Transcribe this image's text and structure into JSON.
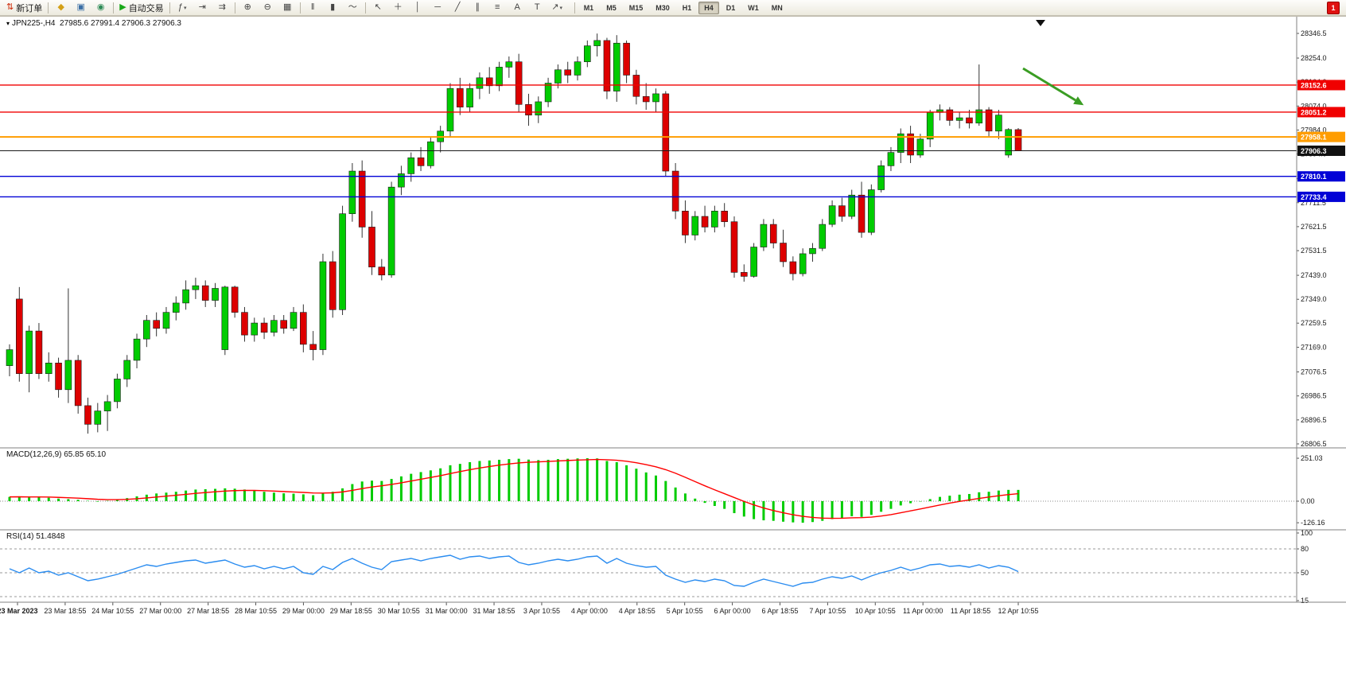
{
  "toolbar": {
    "groups": [
      {
        "items": [
          {
            "name": "new-order-button",
            "glyph": "⇅",
            "color": "#cc2200",
            "label": "新订单"
          }
        ]
      },
      {
        "items": [
          {
            "name": "market-watch-button",
            "glyph": "◆",
            "color": "#d4a017"
          },
          {
            "name": "chart-window-button",
            "glyph": "▣",
            "color": "#3a6ea5"
          },
          {
            "name": "navigator-button",
            "glyph": "◉",
            "color": "#2e8b57"
          }
        ]
      },
      {
        "items": [
          {
            "name": "autotrade-button",
            "glyph": "▶",
            "color": "#18a818",
            "label": "自动交易"
          }
        ]
      },
      {
        "items": [
          {
            "name": "indicators-list-button",
            "glyph": "ƒ",
            "color": "#444444",
            "caret": true
          },
          {
            "name": "shift-chart-button",
            "glyph": "⇥",
            "color": "#444444"
          },
          {
            "name": "auto-scroll-button",
            "glyph": "⇉",
            "color": "#444444"
          }
        ]
      },
      {
        "items": [
          {
            "name": "zoom-in-button",
            "glyph": "⊕",
            "color": "#444444"
          },
          {
            "name": "zoom-out-button",
            "glyph": "⊖",
            "color": "#444444"
          },
          {
            "name": "tile-windows-button",
            "glyph": "▦",
            "color": "#444444"
          }
        ]
      },
      {
        "items": [
          {
            "name": "bar-chart-button",
            "glyph": "‖",
            "color": "#444444"
          },
          {
            "name": "candlestick-chart-button",
            "glyph": "▮",
            "color": "#444444"
          },
          {
            "name": "line-chart-button",
            "glyph": "～",
            "color": "#444444"
          }
        ]
      },
      {
        "items": [
          {
            "name": "cursor-button",
            "glyph": "↖",
            "color": "#444444"
          },
          {
            "name": "crosshair-button",
            "glyph": "＋",
            "color": "#444444"
          },
          {
            "name": "vertical-line-button",
            "glyph": "│",
            "color": "#444444"
          },
          {
            "name": "horizontal-line-button",
            "glyph": "─",
            "color": "#444444"
          },
          {
            "name": "trendline-button",
            "glyph": "╱",
            "color": "#444444"
          },
          {
            "name": "channel-button",
            "glyph": "∥",
            "color": "#444444"
          },
          {
            "name": "fibonacci-button",
            "glyph": "≡",
            "color": "#444444"
          },
          {
            "name": "text-button",
            "glyph": "A",
            "color": "#444444"
          },
          {
            "name": "text-label-button",
            "glyph": "T",
            "color": "#444444"
          },
          {
            "name": "arrows-button",
            "glyph": "↗",
            "color": "#444444",
            "caret": true
          }
        ]
      }
    ],
    "timeframes": {
      "items": [
        "M1",
        "M5",
        "M15",
        "M30",
        "H1",
        "H4",
        "D1",
        "W1",
        "MN"
      ],
      "active": "H4"
    },
    "notification_count": "1"
  },
  "chart": {
    "symbol": "JPN225-,H4",
    "ohlc_line": "27985.6 27991.4 27906.3 27906.3"
  },
  "indicators": {
    "macd": {
      "label": "MACD(12,26,9)",
      "value_main": "65.85",
      "value_signal": "65.10",
      "axis_labels": [
        "251.03",
        "0.00",
        "-126.16"
      ]
    },
    "rsi": {
      "label": "RSI(14)",
      "value": "51.4848",
      "axis_labels": [
        "100",
        "80",
        "50",
        "15"
      ]
    }
  },
  "chart_data": {
    "type": "candlestick",
    "symbol": "JPN225-",
    "timeframe": "H4",
    "title": "JPN225-,H4 27985.6 27991.4 27906.3 27906.3",
    "ylim": [
      26795,
      28410
    ],
    "candles": {
      "format": [
        "open",
        "high",
        "low",
        "close"
      ],
      "ohlc": [
        [
          27100,
          27180,
          27060,
          27160
        ],
        [
          27350,
          27395,
          27040,
          27070
        ],
        [
          27070,
          27250,
          27000,
          27230
        ],
        [
          27230,
          27260,
          27050,
          27070
        ],
        [
          27070,
          27150,
          27040,
          27110
        ],
        [
          27110,
          27130,
          26980,
          27010
        ],
        [
          27010,
          27390,
          26960,
          27120
        ],
        [
          27120,
          27140,
          26920,
          26950
        ],
        [
          26950,
          26980,
          26845,
          26880
        ],
        [
          26880,
          26960,
          26850,
          26930
        ],
        [
          26930,
          26990,
          26855,
          26965
        ],
        [
          26965,
          27070,
          26940,
          27050
        ],
        [
          27050,
          27140,
          27020,
          27120
        ],
        [
          27120,
          27220,
          27090,
          27200
        ],
        [
          27200,
          27290,
          27170,
          27270
        ],
        [
          27270,
          27300,
          27210,
          27240
        ],
        [
          27240,
          27320,
          27220,
          27300
        ],
        [
          27300,
          27360,
          27270,
          27335
        ],
        [
          27335,
          27420,
          27310,
          27385
        ],
        [
          27385,
          27430,
          27350,
          27400
        ],
        [
          27400,
          27420,
          27320,
          27345
        ],
        [
          27345,
          27410,
          27320,
          27390
        ],
        [
          27160,
          27400,
          27140,
          27395
        ],
        [
          27395,
          27400,
          27280,
          27300
        ],
        [
          27300,
          27320,
          27190,
          27215
        ],
        [
          27215,
          27280,
          27190,
          27260
        ],
        [
          27260,
          27280,
          27200,
          27225
        ],
        [
          27225,
          27290,
          27210,
          27270
        ],
        [
          27270,
          27290,
          27220,
          27240
        ],
        [
          27240,
          27320,
          27230,
          27300
        ],
        [
          27300,
          27330,
          27150,
          27180
        ],
        [
          27180,
          27230,
          27120,
          27160
        ],
        [
          27160,
          27520,
          27140,
          27490
        ],
        [
          27490,
          27530,
          27280,
          27310
        ],
        [
          27310,
          27700,
          27290,
          27670
        ],
        [
          27670,
          27860,
          27640,
          27830
        ],
        [
          27830,
          27870,
          27580,
          27620
        ],
        [
          27620,
          27680,
          27440,
          27470
        ],
        [
          27470,
          27500,
          27420,
          27440
        ],
        [
          27440,
          27790,
          27430,
          27770
        ],
        [
          27770,
          27850,
          27740,
          27820
        ],
        [
          27820,
          27900,
          27790,
          27880
        ],
        [
          27880,
          27920,
          27830,
          27850
        ],
        [
          27850,
          27960,
          27840,
          27940
        ],
        [
          27940,
          28000,
          27900,
          27980
        ],
        [
          27980,
          28160,
          27960,
          28140
        ],
        [
          28140,
          28180,
          28040,
          28070
        ],
        [
          28070,
          28160,
          28050,
          28140
        ],
        [
          28140,
          28200,
          28100,
          28180
        ],
        [
          28180,
          28220,
          28120,
          28150
        ],
        [
          28150,
          28240,
          28130,
          28220
        ],
        [
          28220,
          28260,
          28180,
          28240
        ],
        [
          28240,
          28270,
          28050,
          28080
        ],
        [
          28080,
          28120,
          28000,
          28040
        ],
        [
          28040,
          28110,
          28010,
          28090
        ],
        [
          28090,
          28180,
          28070,
          28160
        ],
        [
          28160,
          28230,
          28140,
          28210
        ],
        [
          28210,
          28240,
          28160,
          28190
        ],
        [
          28190,
          28260,
          28170,
          28240
        ],
        [
          28240,
          28320,
          28220,
          28300
        ],
        [
          28300,
          28346,
          28260,
          28320
        ],
        [
          28320,
          28330,
          28100,
          28130
        ],
        [
          28130,
          28340,
          28090,
          28310
        ],
        [
          28310,
          28320,
          28160,
          28190
        ],
        [
          28190,
          28210,
          28080,
          28110
        ],
        [
          28110,
          28160,
          28060,
          28090
        ],
        [
          28090,
          28140,
          28050,
          28120
        ],
        [
          28120,
          28130,
          27810,
          27830
        ],
        [
          27830,
          27860,
          27650,
          27680
        ],
        [
          27680,
          27720,
          27560,
          27590
        ],
        [
          27590,
          27680,
          27570,
          27660
        ],
        [
          27660,
          27700,
          27600,
          27620
        ],
        [
          27620,
          27700,
          27600,
          27680
        ],
        [
          27680,
          27710,
          27620,
          27640
        ],
        [
          27640,
          27660,
          27430,
          27450
        ],
        [
          27450,
          27480,
          27415,
          27435
        ],
        [
          27435,
          27560,
          27430,
          27545
        ],
        [
          27545,
          27650,
          27530,
          27630
        ],
        [
          27630,
          27650,
          27540,
          27560
        ],
        [
          27560,
          27610,
          27470,
          27490
        ],
        [
          27490,
          27510,
          27420,
          27445
        ],
        [
          27445,
          27540,
          27435,
          27520
        ],
        [
          27520,
          27560,
          27490,
          27540
        ],
        [
          27540,
          27650,
          27530,
          27630
        ],
        [
          27630,
          27720,
          27620,
          27700
        ],
        [
          27700,
          27730,
          27640,
          27660
        ],
        [
          27660,
          27760,
          27650,
          27740
        ],
        [
          27740,
          27790,
          27580,
          27600
        ],
        [
          27600,
          27780,
          27590,
          27760
        ],
        [
          27760,
          27870,
          27750,
          27850
        ],
        [
          27850,
          27920,
          27830,
          27900
        ],
        [
          27900,
          27990,
          27860,
          27970
        ],
        [
          27970,
          28000,
          27860,
          27890
        ],
        [
          27890,
          27970,
          27880,
          27950
        ],
        [
          27950,
          28060,
          27920,
          28050
        ],
        [
          28050,
          28080,
          28020,
          28060
        ],
        [
          28060,
          28070,
          28000,
          28020
        ],
        [
          28020,
          28050,
          27990,
          28030
        ],
        [
          28030,
          28060,
          27990,
          28010
        ],
        [
          28010,
          28230,
          28000,
          28060
        ],
        [
          28060,
          28070,
          27960,
          27980
        ],
        [
          27980,
          28060,
          27950,
          28040
        ],
        [
          27890,
          27991,
          27880,
          27986
        ],
        [
          27985.6,
          27991.4,
          27906.3,
          27906.3
        ]
      ]
    },
    "price_axis": {
      "tick_values": [
        28346.5,
        28254.0,
        28164.0,
        28074.0,
        27984.0,
        27894.0,
        27801.5,
        27711.5,
        27621.5,
        27531.5,
        27439.0,
        27349.0,
        27259.5,
        27169.0,
        27076.5,
        26986.5,
        26896.5,
        26806.5
      ],
      "badges": [
        {
          "value": 28152.6,
          "color": "#f00000"
        },
        {
          "value": 28051.2,
          "color": "#f00000"
        },
        {
          "value": 27958.1,
          "color": "#ff9d00"
        },
        {
          "value": 27906.3,
          "color": "#111111"
        },
        {
          "value": 27810.1,
          "color": "#0202d6"
        },
        {
          "value": 27733.4,
          "color": "#0202d6"
        }
      ],
      "current_price": 27906.3
    },
    "levels": [
      {
        "value": 28152.6,
        "color": "#f00000",
        "width": 1.4
      },
      {
        "value": 28051.2,
        "color": "#f00000",
        "width": 1.4
      },
      {
        "value": 27958.1,
        "color": "#ff9d00",
        "width": 2
      },
      {
        "value": 27810.1,
        "color": "#0202d6",
        "width": 1.4
      },
      {
        "value": 27733.4,
        "color": "#0202d6",
        "width": 1.4
      }
    ],
    "bid_line": {
      "value": 27906.3,
      "color": "#1a1a1a"
    },
    "time_axis": [
      "23 Mar 2023",
      "23 Mar 18:55",
      "24 Mar 10:55",
      "27 Mar 00:00",
      "27 Mar 18:55",
      "28 Mar 10:55",
      "29 Mar 00:00",
      "29 Mar 18:55",
      "30 Mar 10:55",
      "31 Mar 00:00",
      "31 Mar 18:55",
      "3 Apr 10:55",
      "4 Apr 00:00",
      "4 Apr 18:55",
      "5 Apr 10:55",
      "6 Apr 00:00",
      "6 Apr 18:55",
      "7 Apr 10:55",
      "10 Apr 10:55",
      "11 Apr 00:00",
      "11 Apr 18:55",
      "12 Apr 10:55"
    ],
    "macd": {
      "values": [
        25,
        28,
        22,
        25,
        20,
        15,
        12,
        8,
        2,
        -3,
        2,
        8,
        18,
        28,
        38,
        45,
        50,
        55,
        62,
        68,
        70,
        72,
        75,
        73,
        68,
        62,
        55,
        50,
        46,
        44,
        40,
        35,
        45,
        55,
        75,
        100,
        115,
        120,
        118,
        130,
        145,
        160,
        170,
        180,
        192,
        210,
        218,
        228,
        235,
        238,
        242,
        246,
        248,
        243,
        240,
        242,
        246,
        248,
        250,
        251,
        250,
        235,
        228,
        210,
        190,
        168,
        150,
        118,
        80,
        45,
        15,
        -10,
        -28,
        -45,
        -70,
        -90,
        -105,
        -112,
        -115,
        -120,
        -124,
        -126,
        -122,
        -115,
        -105,
        -98,
        -88,
        -92,
        -80,
        -62,
        -45,
        -25,
        -12,
        -2,
        12,
        25,
        32,
        38,
        42,
        52,
        55,
        62,
        66,
        65.85
      ],
      "axis_values": [
        251.03,
        0,
        -126.16
      ],
      "up_color": "#00cc00",
      "signal_color": "#ff0000"
    },
    "rsi": {
      "values": [
        55,
        50,
        56,
        50,
        52,
        47,
        50,
        45,
        40,
        42,
        45,
        48,
        52,
        56,
        60,
        58,
        61,
        63,
        65,
        66,
        62,
        64,
        66,
        61,
        57,
        59,
        55,
        58,
        55,
        58,
        50,
        48,
        58,
        54,
        63,
        68,
        62,
        57,
        54,
        64,
        66,
        68,
        65,
        68,
        70,
        72,
        67,
        70,
        71,
        68,
        70,
        71,
        63,
        60,
        62,
        65,
        67,
        65,
        67,
        70,
        71,
        62,
        68,
        62,
        59,
        57,
        58,
        47,
        42,
        38,
        41,
        39,
        42,
        40,
        34,
        33,
        38,
        42,
        39,
        36,
        33,
        37,
        38,
        42,
        45,
        43,
        46,
        41,
        46,
        50,
        53,
        57,
        53,
        56,
        60,
        61,
        58,
        59,
        57,
        60,
        56,
        59,
        57,
        51.48
      ],
      "axis_values": [
        100,
        80,
        50,
        15
      ],
      "level_lines": [
        80,
        50,
        20
      ],
      "color": "#2a8cf0"
    },
    "annotations": [
      {
        "type": "arrow",
        "from": [
          1286,
          66
        ],
        "to": [
          1352,
          106
        ],
        "color": "#3a9d23"
      }
    ],
    "colors": {
      "up": "#00cc00",
      "down": "#dd0000",
      "wick": "#333333",
      "grid": "#808080",
      "axis_text": "#1a1a1a"
    }
  }
}
